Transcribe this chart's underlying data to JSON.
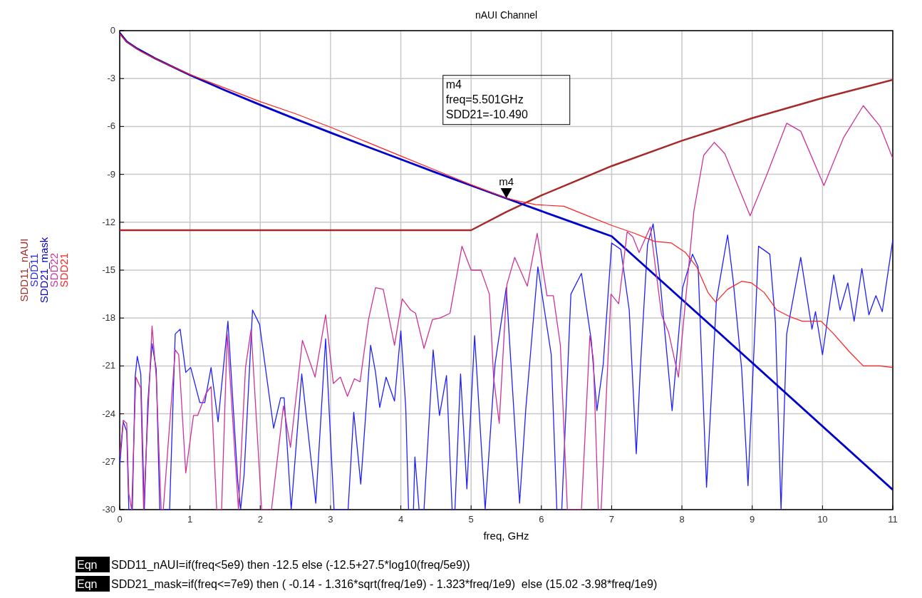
{
  "chart_data": {
    "type": "line",
    "title": "nAUI Channel",
    "xlabel": "freq, GHz",
    "xlim": [
      0,
      11
    ],
    "xticks": [
      0,
      1,
      2,
      3,
      4,
      5,
      6,
      7,
      8,
      9,
      10,
      11
    ],
    "ylim": [
      -30,
      0
    ],
    "yticks": [
      0,
      -3,
      -6,
      -9,
      -12,
      -15,
      -18,
      -21,
      -24,
      -27,
      -30
    ],
    "grid": true,
    "legend": "left",
    "series": [
      {
        "name": "SDD11_nAUI",
        "color": "#a52a2a",
        "x": [
          0,
          5,
          5.5,
          6,
          7,
          8,
          9,
          10,
          11
        ],
        "values": [
          -12.5,
          -12.5,
          -11.36,
          -10.32,
          -8.48,
          -6.89,
          -5.48,
          -4.22,
          -3.08
        ]
      },
      {
        "name": "SDD11",
        "color": "#1f1fff",
        "x": [
          0,
          0.05,
          0.1,
          0.13,
          0.18,
          0.22,
          0.25,
          0.3,
          0.35,
          0.4,
          0.46,
          0.52,
          0.57,
          0.71,
          0.79,
          0.86,
          0.94,
          1.01,
          1.14,
          1.21,
          1.3,
          1.4,
          1.54,
          1.68,
          1.72,
          1.77,
          1.89,
          1.99,
          2.19,
          2.29,
          2.34,
          2.44,
          2.59,
          2.79,
          2.93,
          3.05,
          3.25,
          3.33,
          3.43,
          3.57,
          3.64,
          3.7,
          3.79,
          3.91,
          4.0,
          4.07,
          4.11,
          4.18,
          4.2,
          4.26,
          4.33,
          4.46,
          4.55,
          4.65,
          4.73,
          4.77,
          4.85,
          4.94,
          5.05,
          5.2,
          5.34,
          5.5,
          5.69,
          5.78,
          5.95,
          6.14,
          6.22,
          6.29,
          6.42,
          6.57,
          6.71,
          6.79,
          6.88,
          7.0,
          7.13,
          7.25,
          7.35,
          7.41,
          7.51,
          7.59,
          7.69,
          7.86,
          8.01,
          8.15,
          8.23,
          8.35,
          8.49,
          8.65,
          8.73,
          8.85,
          8.94,
          9.09,
          9.25,
          9.33,
          9.41,
          9.49,
          9.69,
          9.85,
          9.9,
          10.0,
          10.16,
          10.25,
          10.36,
          10.45,
          10.56,
          10.66,
          10.76,
          10.85,
          11.0
        ],
        "values": [
          -27.3,
          -24.5,
          -25.1,
          -30,
          -30,
          -21.7,
          -20.4,
          -21.5,
          -30,
          -23.3,
          -19.6,
          -21.2,
          -30,
          -30,
          -19.0,
          -18.7,
          -21.4,
          -21.1,
          -23.3,
          -23.3,
          -21.1,
          -24.5,
          -18.2,
          -28.2,
          -30,
          -27.8,
          -17.5,
          -18.4,
          -24.9,
          -23.0,
          -23.0,
          -30,
          -21.5,
          -29.6,
          -19.3,
          -30,
          -30,
          -23.9,
          -28.4,
          -19.7,
          -21.4,
          -23.6,
          -21.7,
          -23.2,
          -18.8,
          -23.6,
          -30,
          -30,
          -26.7,
          -30,
          -30,
          -20.0,
          -24.1,
          -21.6,
          -30,
          -30,
          -21.5,
          -28.7,
          -19.1,
          -30,
          -20.9,
          -16.1,
          -29.6,
          -23.6,
          -14.8,
          -20.3,
          -30,
          -30,
          -16.5,
          -15.2,
          -19.4,
          -23.8,
          -20.9,
          -13.3,
          -13.7,
          -17.5,
          -26.5,
          -21.0,
          -13.4,
          -12.1,
          -15.7,
          -23.8,
          -16.1,
          -14.0,
          -14.8,
          -28.6,
          -16.9,
          -12.8,
          -15.7,
          -21.2,
          -28.5,
          -13.5,
          -14.0,
          -18.3,
          -30,
          -19.0,
          -14.2,
          -18.7,
          -17.6,
          -20.3,
          -15.3,
          -17.5,
          -15.8,
          -18.2,
          -14.9,
          -17.8,
          -16.6,
          -17.6,
          -13.1
        ]
      },
      {
        "name": "SDD21_mask",
        "color": "#0000cc",
        "x": [
          0,
          0.1,
          0.25,
          0.5,
          1,
          1.5,
          2,
          2.5,
          3,
          3.5,
          4,
          4.5,
          5,
          5.5,
          6,
          6.5,
          7,
          9,
          11
        ],
        "values": [
          -0.14,
          -0.69,
          -1.13,
          -1.73,
          -2.78,
          -3.74,
          -4.65,
          -5.53,
          -6.39,
          -7.23,
          -8.06,
          -8.89,
          -9.7,
          -10.5,
          -11.3,
          -12.09,
          -12.88,
          -20.8,
          -28.76
        ]
      },
      {
        "name": "SDD22",
        "color": "#cc3399",
        "x": [
          0,
          0.05,
          0.1,
          0.13,
          0.17,
          0.23,
          0.3,
          0.34,
          0.46,
          0.52,
          0.59,
          0.62,
          0.79,
          0.84,
          0.94,
          1.05,
          1.11,
          1.23,
          1.3,
          1.38,
          1.45,
          1.53,
          1.69,
          1.79,
          1.87,
          2.02,
          2.16,
          2.33,
          2.43,
          2.6,
          2.78,
          2.93,
          3.04,
          3.14,
          3.24,
          3.34,
          3.42,
          3.54,
          3.64,
          3.75,
          3.91,
          4.02,
          4.14,
          4.21,
          4.33,
          4.45,
          4.56,
          4.7,
          4.87,
          5.0,
          5.14,
          5.26,
          5.32,
          5.4,
          5.51,
          5.62,
          5.8,
          5.94,
          6.08,
          6.17,
          6.27,
          6.37,
          6.57,
          6.69,
          6.74,
          6.81,
          6.85,
          6.99,
          7.1,
          7.22,
          7.3,
          7.39,
          7.55,
          7.71,
          7.81,
          7.95,
          8.17,
          8.31,
          8.46,
          8.61,
          8.97,
          9.21,
          9.49,
          9.69,
          10.02,
          10.3,
          10.58,
          10.82,
          11.0
        ],
        "values": [
          -26.7,
          -24.4,
          -24.6,
          -29.0,
          -30,
          -21.7,
          -22.4,
          -30,
          -18.5,
          -21.7,
          -30,
          -30,
          -20.0,
          -20.3,
          -27.7,
          -24.1,
          -24.1,
          -22.7,
          -22.3,
          -30,
          -30,
          -19.0,
          -30,
          -21.1,
          -18.7,
          -30,
          -30,
          -23.5,
          -26.1,
          -19.4,
          -21.7,
          -17.8,
          -22.1,
          -21.7,
          -22.9,
          -21.8,
          -22.0,
          -18.1,
          -16.1,
          -16.2,
          -19.7,
          -16.8,
          -17.5,
          -17.7,
          -19.9,
          -18.1,
          -18.0,
          -17.7,
          -13.5,
          -15.0,
          -15.0,
          -16.5,
          -21.7,
          -24.6,
          -15.9,
          -14.2,
          -16.0,
          -12.7,
          -16.6,
          -16.6,
          -19.7,
          -30,
          -30,
          -19.1,
          -20.6,
          -30,
          -30,
          -16.5,
          -17.1,
          -12.6,
          -12.9,
          -13.9,
          -12.3,
          -17.8,
          -18.9,
          -21.7,
          -11.3,
          -7.8,
          -7.0,
          -7.7,
          -11.6,
          -9.0,
          -5.8,
          -6.3,
          -9.7,
          -6.7,
          -4.7,
          -6.0,
          -8.0
        ]
      },
      {
        "name": "SDD21",
        "color": "#ff2020",
        "x": [
          0,
          0.1,
          0.3,
          0.6,
          1,
          1.5,
          2,
          2.5,
          3,
          3.5,
          4,
          4.5,
          5,
          5.501,
          5.7,
          5.92,
          6.32,
          6.66,
          7.0,
          7.33,
          7.61,
          7.85,
          8.05,
          8.21,
          8.37,
          8.48,
          8.65,
          8.85,
          8.99,
          9.17,
          9.35,
          9.53,
          9.71,
          9.98,
          10.14,
          10.38,
          10.58,
          10.82,
          11.0
        ],
        "values": [
          -0.2,
          -0.7,
          -1.3,
          -1.95,
          -2.75,
          -3.6,
          -4.45,
          -5.2,
          -6.05,
          -6.95,
          -7.85,
          -8.75,
          -9.65,
          -10.49,
          -10.7,
          -10.9,
          -11.0,
          -11.6,
          -12.2,
          -12.7,
          -13.2,
          -13.3,
          -13.9,
          -14.8,
          -16.4,
          -17.0,
          -16.2,
          -15.7,
          -15.8,
          -16.4,
          -17.5,
          -17.9,
          -18.2,
          -18.2,
          -18.9,
          -20.1,
          -21.0,
          -21.0,
          -21.1
        ]
      }
    ],
    "annotations": [
      {
        "text": "m4",
        "x": 5.501,
        "y": -10.49
      },
      "m4\nfreq=5.501GHz\nSDD21=-10.490",
      "Eqn SDD11_nAUI=if(freq<5e9) then -12.5 else (-12.5+27.5*log10(freq/5e9))",
      "Eqn SDD21_mask=if(freq<=7e9) then ( -0.14 - 1.316*sqrt(freq/1e9) - 1.323*freq/1e9)  else (15.02 -3.98*freq/1e9)"
    ]
  }
}
